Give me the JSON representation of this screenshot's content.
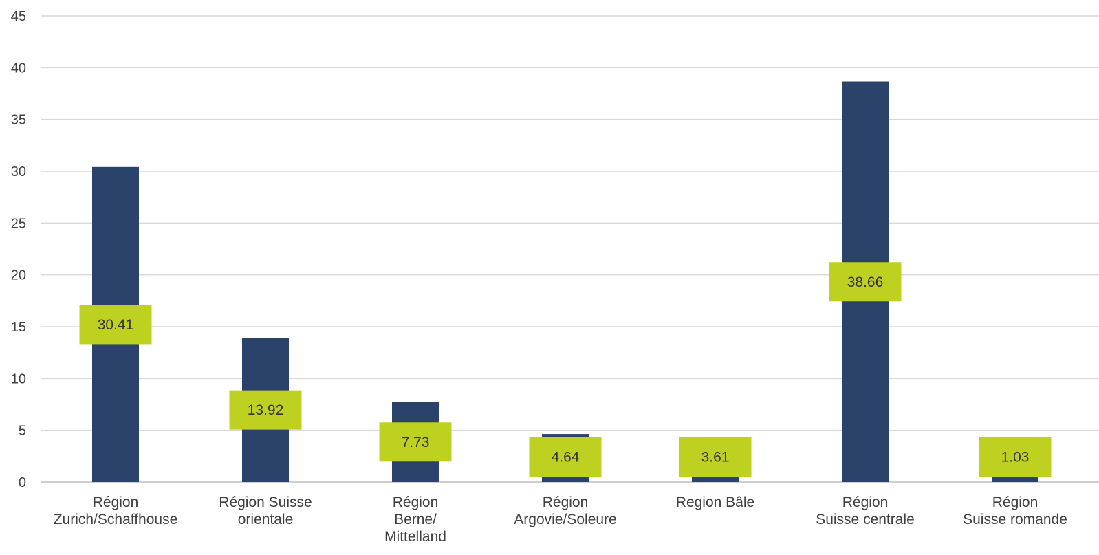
{
  "chart_data": {
    "type": "bar",
    "categories": [
      [
        "Région",
        "Zurich/Schaffhouse"
      ],
      [
        "Région Suisse",
        "orientale"
      ],
      [
        "Région",
        "Berne/",
        "Mittelland"
      ],
      [
        "Région",
        "Argovie/Soleure"
      ],
      [
        "Region Bâle"
      ],
      [
        "Région",
        "Suisse centrale"
      ],
      [
        "Région",
        "Suisse romande"
      ]
    ],
    "values": [
      30.41,
      13.92,
      7.73,
      4.64,
      3.61,
      38.66,
      1.03
    ],
    "value_labels": [
      "30.41",
      "13.92",
      "7.73",
      "4.64",
      "3.61",
      "38.66",
      "1.03"
    ],
    "yticks": [
      "0",
      "5",
      "10",
      "15",
      "20",
      "25",
      "30",
      "35",
      "40",
      "45"
    ],
    "ylim": [
      0,
      45
    ],
    "grid": true,
    "legend": "none",
    "colors": {
      "bar": "#2b426b",
      "label_box": "#bfd120",
      "grid": "#d9d9d9",
      "text": "#404040"
    }
  }
}
